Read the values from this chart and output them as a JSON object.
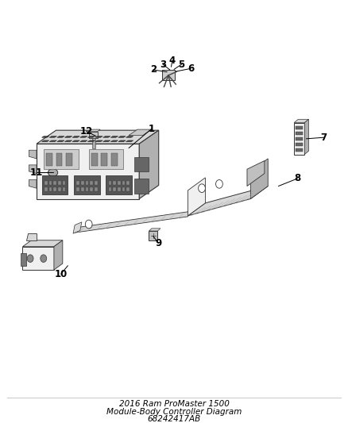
{
  "title": "2016 Ram ProMaster 1500\nModule-Body Controller Diagram\n68242417AB",
  "background_color": "#ffffff",
  "text_color": "#000000",
  "line_color": "#000000",
  "label_fontsize": 8.5,
  "title_fontsize": 7.5,
  "border_color": "#aaaaaa",
  "parts_labels": {
    "1": [
      0.435,
      0.695,
      0.37,
      0.65
    ],
    "2": [
      0.44,
      0.835,
      0.48,
      0.83
    ],
    "3": [
      0.468,
      0.848,
      0.488,
      0.835
    ],
    "4": [
      0.495,
      0.856,
      0.492,
      0.842
    ],
    "5": [
      0.522,
      0.848,
      0.5,
      0.836
    ],
    "6": [
      0.548,
      0.838,
      0.505,
      0.831
    ],
    "7": [
      0.93,
      0.675,
      0.88,
      0.672
    ],
    "8": [
      0.855,
      0.578,
      0.8,
      0.56
    ],
    "9": [
      0.455,
      0.425,
      0.44,
      0.442
    ],
    "10": [
      0.175,
      0.352,
      0.195,
      0.372
    ],
    "11": [
      0.105,
      0.592,
      0.153,
      0.592
    ],
    "12": [
      0.248,
      0.69,
      0.276,
      0.678
    ]
  }
}
